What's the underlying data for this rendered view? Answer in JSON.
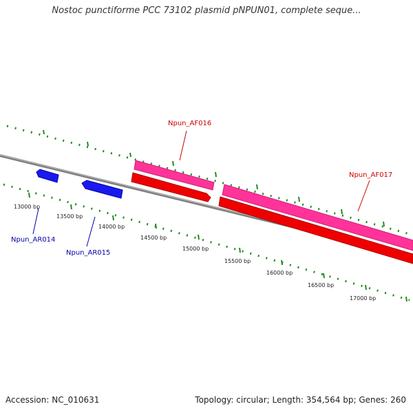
{
  "title": "Nostoc punctiforme PCC 73102 plasmid pNPUN01, complete seque...",
  "footer": {
    "accession": "Accession: NC_010631",
    "summary": "Topology: circular; Length: 354,564 bp; Genes: 260"
  },
  "colors": {
    "backbone": "#808080",
    "tick": "#1e8c1e",
    "forward_cds": "#ff3399",
    "reverse_cds": "#ee0000",
    "forward_rna": "#1a1aee",
    "label_red": "#cc0000",
    "label_blue": "#0000aa"
  },
  "ticks": [
    {
      "label": "13000 bp"
    },
    {
      "label": "13500 bp"
    },
    {
      "label": "14000 bp"
    },
    {
      "label": "14500 bp"
    },
    {
      "label": "15000 bp"
    },
    {
      "label": "15500 bp"
    },
    {
      "label": "16000 bp"
    },
    {
      "label": "16500 bp"
    },
    {
      "label": "17000 bp"
    }
  ],
  "genes": [
    {
      "label": "Npun_AR014",
      "color_key": "label_blue"
    },
    {
      "label": "Npun_AR015",
      "color_key": "label_blue"
    },
    {
      "label": "Npun_AF016",
      "color_key": "label_red"
    },
    {
      "label": "Npun_AF017",
      "color_key": "label_red"
    }
  ]
}
